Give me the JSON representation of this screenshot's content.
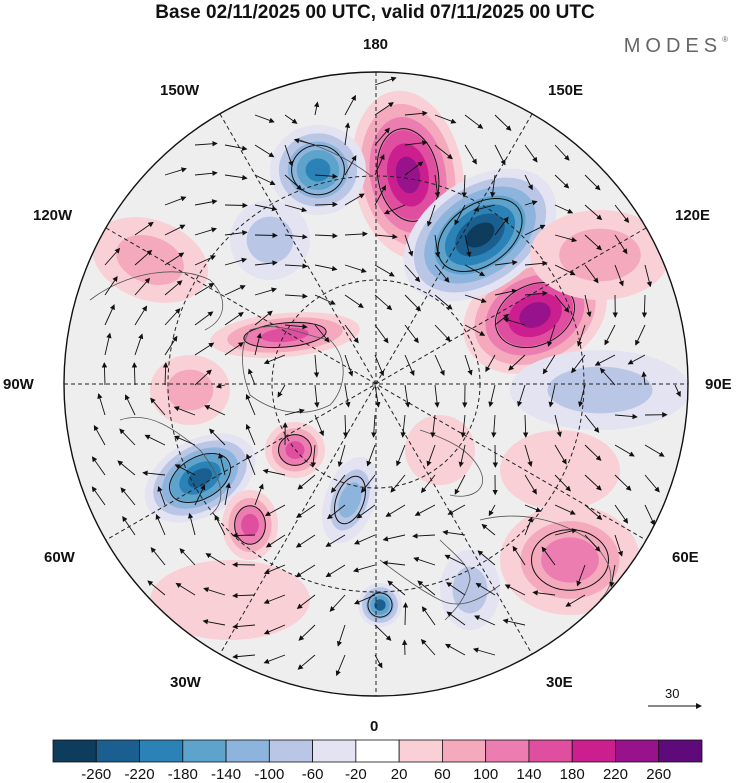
{
  "title": "Base 02/11/2025 00 UTC, valid 07/11/2025 00 UTC",
  "brand": "MODES",
  "brand_mark": "®",
  "longitudes": {
    "top": "180",
    "bottom": "0",
    "left": "90W",
    "right": "90E",
    "upper_left_1": "150W",
    "upper_left_2": "120W",
    "upper_right_1": "150E",
    "upper_right_2": "120E",
    "lower_left_1": "60W",
    "lower_left_2": "30W",
    "lower_right_1": "60E",
    "lower_right_2": "30E"
  },
  "reference_vector": {
    "label": "30"
  },
  "colorbar": {
    "colors": [
      "#0d3c5c",
      "#1a5f8f",
      "#2b82b6",
      "#5ea3cc",
      "#8cb4dc",
      "#b9c6e6",
      "#e3e3f2",
      "#ffffff",
      "#f9d0d6",
      "#f4a9bd",
      "#ec7db0",
      "#e04ea0",
      "#cc1f8f",
      "#98128b",
      "#5e0a7a"
    ],
    "labels": [
      "-260",
      "-220",
      "-180",
      "-140",
      "-100",
      "-60",
      "-20",
      "20",
      "60",
      "100",
      "140",
      "180",
      "220",
      "260"
    ]
  }
}
